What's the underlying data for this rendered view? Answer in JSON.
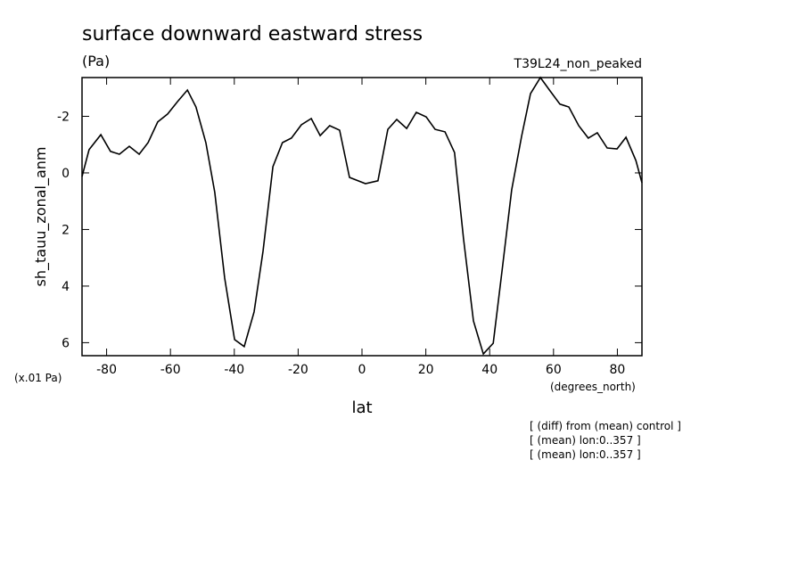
{
  "chart_data": {
    "type": "line",
    "title": "surface downward eastward stress",
    "units": "(Pa)",
    "dataset": "T39L24_non_peaked",
    "ylabel": "sh_tauu_zonal_anm",
    "yscale_label": "(x.01 Pa)",
    "xunits": "(degrees_north)",
    "xlabel": "lat",
    "notes": [
      "[ (diff) from (mean) control ]",
      "[ (mean) lon:0..357 ]",
      "[ (mean) lon:0..357 ]"
    ],
    "color": "#000000",
    "y_inverted": true,
    "x": [
      -87.7,
      -85.5,
      -81.8,
      -78.8,
      -76,
      -72.9,
      -69.8,
      -67,
      -64,
      -60.9,
      -57.8,
      -54.7,
      -52,
      -48.9,
      -46.1,
      -43,
      -39.9,
      -36.9,
      -33.8,
      -31,
      -27.9,
      -24.9,
      -22.1,
      -19,
      -15.9,
      -13.1,
      -10.1,
      -7,
      -3.9,
      1.1,
      5,
      8.1,
      10.9,
      14,
      17,
      20.1,
      22.9,
      26,
      29,
      31.8,
      34.9,
      38,
      41.1,
      43.9,
      46.9,
      50,
      52.8,
      55.9,
      58.9,
      62,
      64.8,
      67.9,
      70.9,
      73.7,
      76.8,
      79.9,
      82.7,
      85.8,
      87.7
    ],
    "values": [
      0.13,
      -0.82,
      -1.35,
      -0.76,
      -0.66,
      -0.94,
      -0.66,
      -1.07,
      -1.8,
      -2.08,
      -2.52,
      -2.93,
      -2.33,
      -1.07,
      0.69,
      3.72,
      5.89,
      6.14,
      4.91,
      2.77,
      -0.22,
      -1.07,
      -1.23,
      -1.7,
      -1.92,
      -1.32,
      -1.67,
      -1.51,
      0.16,
      0.38,
      0.28,
      -1.54,
      -1.89,
      -1.57,
      -2.14,
      -1.98,
      -1.54,
      -1.45,
      -0.72,
      2.33,
      5.23,
      6.4,
      6.02,
      3.43,
      0.6,
      -1.29,
      -2.8,
      -3.37,
      -2.9,
      -2.43,
      -2.33,
      -1.67,
      -1.23,
      -1.42,
      -0.88,
      -0.85,
      -1.26,
      -0.44,
      0.35
    ],
    "xlim": [
      -87.7,
      87.7
    ],
    "ylim": [
      -3.37,
      6.46
    ],
    "xticks": [
      -80,
      -60,
      -40,
      -20,
      0,
      20,
      40,
      60,
      80
    ],
    "yticks": [
      -2,
      0,
      2,
      4,
      6
    ]
  }
}
